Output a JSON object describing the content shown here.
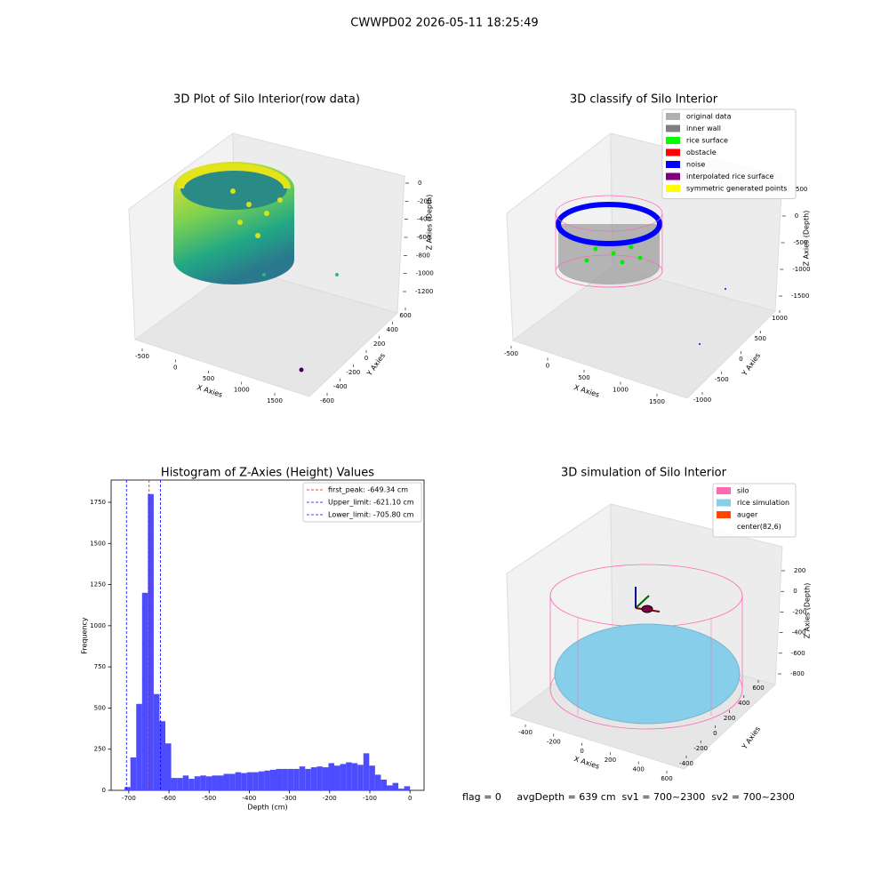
{
  "title": "CWWPD02 2026-05-11 18:25:49",
  "footer": "flag = 0     avgDepth = 639 cm  sv1 = 700~2300  sv2 = 700~2300",
  "chart_data": [
    {
      "type": "scatter3d",
      "title": "3D Plot of Silo Interior(row data)",
      "xlabel": "X Axies",
      "ylabel": "Y Axies",
      "zlabel": "Z Axies (Depth)",
      "xticks": [
        -500,
        0,
        500,
        1000,
        1500
      ],
      "yticks": [
        -600,
        -400,
        -200,
        0,
        200,
        400,
        600
      ],
      "zticks": [
        0,
        -200,
        -400,
        -600,
        -800,
        -1000,
        -1200
      ],
      "colormap": "viridis"
    },
    {
      "type": "scatter3d",
      "title": "3D classify of Silo Interior",
      "xlabel": "X Axies",
      "ylabel": "Y Axies",
      "zlabel": "Z Axies (Depth)",
      "xticks": [
        -500,
        0,
        500,
        1000,
        1500
      ],
      "yticks": [
        -1000,
        -500,
        0,
        500,
        1000
      ],
      "zticks": [
        500,
        0,
        -500,
        -1000,
        -1500
      ],
      "legend": "upper right",
      "series": [
        {
          "name": "original data",
          "color": "#b0b0b0"
        },
        {
          "name": "inner wall",
          "color": "#808080"
        },
        {
          "name": "rice surface",
          "color": "#00ff00"
        },
        {
          "name": "obstacle",
          "color": "#ff0000"
        },
        {
          "name": "noise",
          "color": "#0000ff"
        },
        {
          "name": "interpolated rice surface",
          "color": "#800080"
        },
        {
          "name": "symmetric generated points",
          "color": "#ffff00"
        }
      ]
    },
    {
      "type": "histogram",
      "title": "Histogram of Z-Axies (Height) Values",
      "xlabel": "Depth (cm)",
      "ylabel": "Frequency",
      "color": "#4d4dff",
      "bins": [
        -710.5,
        -696,
        -681.5,
        -667,
        -652.5,
        -638,
        -623.5,
        -609,
        -594.5,
        -580,
        -565.5,
        -551,
        -536.5,
        -522,
        -507.5,
        -493,
        -478.5,
        -464,
        -449.5,
        -435,
        -420.5,
        -406,
        -391.5,
        -377,
        -362.5,
        -348,
        -333.5,
        -319,
        -304.5,
        -290,
        -275.5,
        -261,
        -246.5,
        -232,
        -217.5,
        -203,
        -188.5,
        -174,
        -159.5,
        -145,
        -130.5,
        -116,
        -101.5,
        -87,
        -72.5,
        -58,
        -43.5,
        -29,
        -14.5,
        0
      ],
      "counts": [
        20,
        200,
        525,
        1200,
        1800,
        585,
        420,
        285,
        75,
        75,
        90,
        70,
        85,
        90,
        85,
        90,
        90,
        100,
        100,
        110,
        105,
        110,
        110,
        115,
        120,
        125,
        130,
        130,
        130,
        130,
        145,
        130,
        140,
        145,
        140,
        165,
        150,
        160,
        170,
        165,
        155,
        225,
        150,
        95,
        65,
        30,
        45,
        10,
        25
      ],
      "xlim": [
        -744,
        35
      ],
      "ylim": [
        0,
        1885
      ],
      "xticks": [
        -700,
        -600,
        -500,
        -400,
        -300,
        -200,
        -100,
        0
      ],
      "yticks": [
        0,
        250,
        500,
        750,
        1000,
        1250,
        1500,
        1750
      ],
      "legend": "upper right",
      "vlines": [
        {
          "name": "first_peak: -649.34 cm",
          "value": -649.34,
          "color": "#ff0000"
        },
        {
          "name": "Upper_limit: -621.10 cm",
          "value": -621.1,
          "color": "#0000ff"
        },
        {
          "name": "Lower_limit: -705.80 cm",
          "value": -705.8,
          "color": "#0000ff"
        }
      ]
    },
    {
      "type": "surface3d",
      "title": "3D simulation of Silo Interior",
      "xlabel": "X Axies",
      "ylabel": "Y Axies",
      "zlabel": "Z Axies (Depth)",
      "xticks": [
        -400,
        -200,
        0,
        200,
        400,
        600
      ],
      "yticks": [
        -400,
        -200,
        0,
        200,
        400,
        600
      ],
      "zticks": [
        200,
        0,
        -200,
        -400,
        -600,
        -800
      ],
      "legend": "upper right",
      "series": [
        {
          "name": "silo",
          "color": "#ff69b4"
        },
        {
          "name": "rice simulation",
          "color": "#87ceeb"
        },
        {
          "name": "auger",
          "color": "#ff4500"
        },
        {
          "name": "center(82,6)",
          "color": "#ffffff"
        }
      ]
    }
  ]
}
